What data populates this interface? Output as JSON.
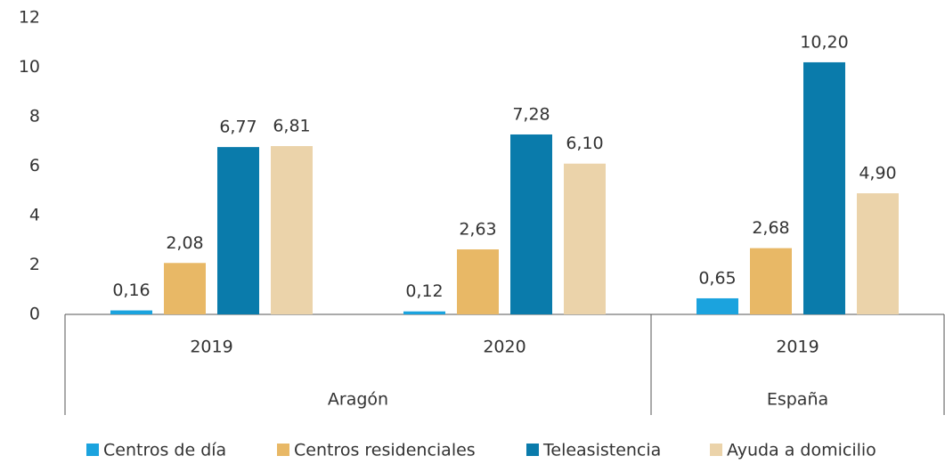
{
  "chart_data": {
    "type": "bar",
    "groups": [
      {
        "label": "Aragón",
        "categories": [
          "2019",
          "2020"
        ]
      },
      {
        "label": "España",
        "categories": [
          "2019"
        ]
      }
    ],
    "series": [
      {
        "name": "Centros de día",
        "color": "#1ba3de",
        "values": [
          0.16,
          0.12,
          0.65
        ],
        "value_labels": [
          "0,16",
          "0,12",
          "0,65"
        ]
      },
      {
        "name": "Centros residenciales",
        "color": "#e8b866",
        "values": [
          2.08,
          2.63,
          2.68
        ],
        "value_labels": [
          "2,08",
          "2,63",
          "2,68"
        ]
      },
      {
        "name": "Teleasistencia",
        "color": "#0a7bab",
        "values": [
          6.77,
          7.28,
          10.2
        ],
        "value_labels": [
          "6,77",
          "7,28",
          "10,20"
        ]
      },
      {
        "name": "Ayuda a domicilio",
        "color": "#ebd3aa",
        "values": [
          6.81,
          6.1,
          4.9
        ],
        "value_labels": [
          "6,81",
          "6,10",
          "4,90"
        ]
      }
    ],
    "ylim": [
      0,
      12
    ],
    "yticks": [
      0,
      2,
      4,
      6,
      8,
      10,
      12
    ],
    "grid": false
  }
}
